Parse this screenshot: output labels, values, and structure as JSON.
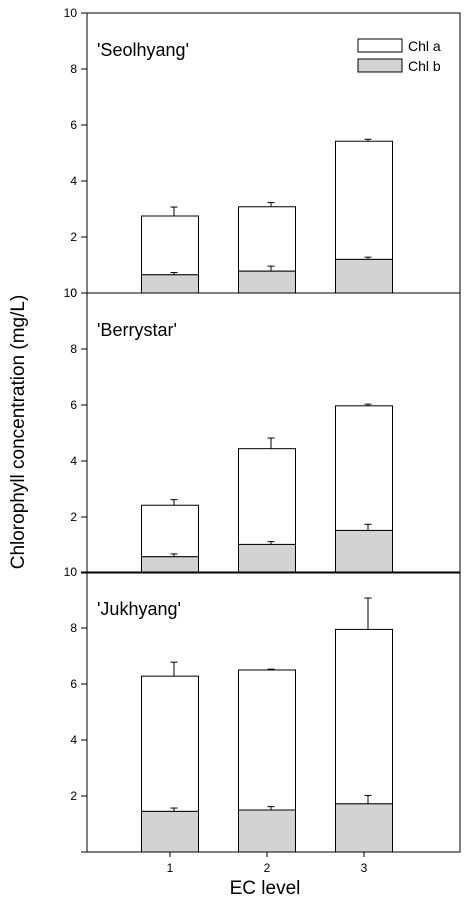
{
  "chart_data": {
    "type": "bar",
    "stacked": true,
    "xlabel": "EC level",
    "ylabel": "Chlorophyll concentration (mg/L)",
    "categories": [
      "1",
      "2",
      "3"
    ],
    "ylim": [
      0,
      10
    ],
    "yticks": [
      "0",
      "2",
      "4",
      "6",
      "8",
      "10"
    ],
    "legend": {
      "position": "top-right",
      "entries": [
        {
          "name": "Chl a",
          "color": "#ffffff"
        },
        {
          "name": "Chl b",
          "color": "#d3d3d3"
        }
      ]
    },
    "panels": [
      {
        "title": "'Seolhyang'",
        "series": [
          {
            "name": "Chl b",
            "values": [
              0.65,
              0.78,
              1.2
            ],
            "errors": [
              0.08,
              0.18,
              0.08
            ]
          },
          {
            "name": "Chl a",
            "values": [
              2.1,
              2.3,
              4.22
            ],
            "errors": [
              0.32,
              0.15,
              0.07
            ]
          }
        ]
      },
      {
        "title": "'Berrystar'",
        "series": [
          {
            "name": "Chl b",
            "values": [
              0.58,
              1.02,
              1.52
            ],
            "errors": [
              0.1,
              0.1,
              0.22
            ]
          },
          {
            "name": "Chl a",
            "values": [
              1.84,
              3.42,
              4.45
            ],
            "errors": [
              0.2,
              0.38,
              0.06
            ]
          }
        ]
      },
      {
        "title": "'Jukhyang'",
        "series": [
          {
            "name": "Chl b",
            "values": [
              1.45,
              1.5,
              1.72
            ],
            "errors": [
              0.12,
              0.12,
              0.3
            ]
          },
          {
            "name": "Chl a",
            "values": [
              4.83,
              5.0,
              6.23
            ],
            "errors": [
              0.5,
              0.03,
              1.12
            ]
          }
        ]
      }
    ]
  }
}
